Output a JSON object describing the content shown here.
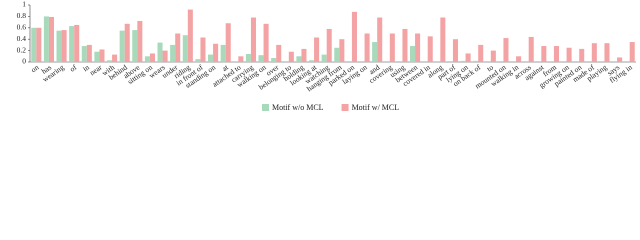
{
  "chart_data": {
    "type": "bar",
    "categories": [
      "on",
      "has",
      "wearing",
      "of",
      "in",
      "near",
      "with",
      "behind",
      "above",
      "sitting on",
      "wears",
      "under",
      "riding",
      "in front of",
      "standing on",
      "at",
      "attached to",
      "carrying",
      "walking on",
      "over",
      "belonging to",
      "holding",
      "looking at",
      "watching",
      "hanging from",
      "parked on",
      "laying on",
      "and",
      "covering",
      "using",
      "between",
      "covered in",
      "along",
      "part of",
      "lying on",
      "on back of",
      "to",
      "mounted on",
      "walking in",
      "across",
      "against",
      "from",
      "growing on",
      "painted on",
      "made of",
      "playing",
      "says",
      "flying in"
    ],
    "series": [
      {
        "name": "Motif w/o MCL",
        "color": "#a9d9bb",
        "values": [
          0.6,
          0.8,
          0.55,
          0.63,
          0.28,
          0.18,
          0.03,
          0.55,
          0.56,
          0.1,
          0.34,
          0.3,
          0.47,
          0.05,
          0.13,
          0.3,
          0.0,
          0.14,
          0.12,
          0.07,
          0.0,
          0.1,
          0.03,
          0.13,
          0.25,
          0.0,
          0.0,
          0.35,
          0.0,
          0.0,
          0.28,
          0.0,
          0.0,
          0.0,
          0.02,
          0.02,
          0.0,
          0.0,
          0.0,
          0.0,
          0.0,
          0.0,
          0.0,
          0.0,
          0.0,
          0.0,
          0.0,
          0.0
        ]
      },
      {
        "name": "Motif w/ MCL",
        "color": "#f4a3a5",
        "values": [
          0.6,
          0.79,
          0.56,
          0.65,
          0.3,
          0.22,
          0.13,
          0.67,
          0.72,
          0.15,
          0.2,
          0.5,
          0.92,
          0.43,
          0.32,
          0.68,
          0.1,
          0.78,
          0.67,
          0.3,
          0.18,
          0.23,
          0.43,
          0.58,
          0.4,
          0.88,
          0.5,
          0.78,
          0.5,
          0.58,
          0.5,
          0.45,
          0.78,
          0.4,
          0.15,
          0.3,
          0.2,
          0.42,
          0.1,
          0.44,
          0.28,
          0.28,
          0.25,
          0.23,
          0.33,
          0.33,
          0.08,
          0.35
        ]
      }
    ],
    "ylim": [
      0,
      1
    ],
    "yticks": [
      0,
      0.2,
      0.4,
      0.6,
      0.8,
      1
    ],
    "grid": false,
    "legend": "bottom"
  }
}
